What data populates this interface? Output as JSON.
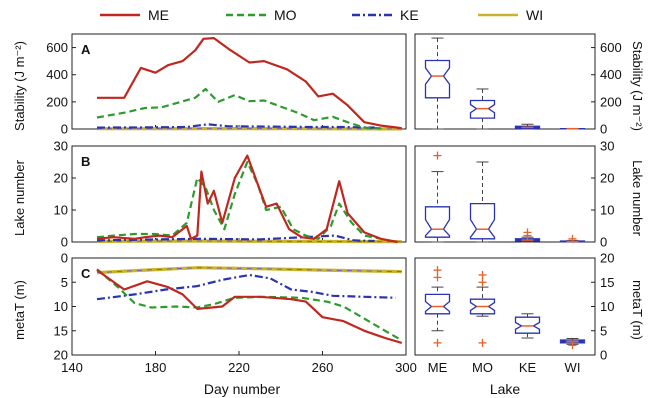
{
  "chart_data": [
    {
      "panel": "A",
      "type": "line",
      "x_label": "Day number",
      "y_label": "Stability (J m⁻²)",
      "xlim": [
        140,
        300
      ],
      "ylim": [
        0,
        700
      ],
      "x_ticks": [
        140,
        180,
        220,
        260,
        300
      ],
      "y_ticks": [
        0,
        200,
        400,
        600
      ],
      "series": [
        {
          "name": "ME",
          "color": "#c0281f",
          "dash": "solid",
          "points": [
            [
              152,
              230
            ],
            [
              165,
              230
            ],
            [
              173,
              450
            ],
            [
              180,
              415
            ],
            [
              186,
              470
            ],
            [
              193,
              500
            ],
            [
              199,
              580
            ],
            [
              203,
              665
            ],
            [
              208,
              670
            ],
            [
              215,
              590
            ],
            [
              225,
              490
            ],
            [
              232,
              500
            ],
            [
              243,
              440
            ],
            [
              252,
              350
            ],
            [
              258,
              240
            ],
            [
              265,
              260
            ],
            [
              272,
              175
            ],
            [
              280,
              50
            ],
            [
              288,
              25
            ],
            [
              296,
              10
            ],
            [
              298,
              5
            ]
          ]
        },
        {
          "name": "MO",
          "color": "#2e9b2e",
          "dash": "dashed",
          "points": [
            [
              152,
              85
            ],
            [
              165,
              120
            ],
            [
              175,
              155
            ],
            [
              183,
              160
            ],
            [
              192,
              200
            ],
            [
              199,
              230
            ],
            [
              204,
              295
            ],
            [
              210,
              200
            ],
            [
              218,
              250
            ],
            [
              225,
              205
            ],
            [
              232,
              210
            ],
            [
              240,
              165
            ],
            [
              248,
              120
            ],
            [
              256,
              65
            ],
            [
              265,
              90
            ],
            [
              272,
              50
            ],
            [
              280,
              10
            ],
            [
              288,
              5
            ]
          ]
        },
        {
          "name": "KE",
          "color": "#2a33b0",
          "dash": "dashdot",
          "points": [
            [
              152,
              10
            ],
            [
              175,
              12
            ],
            [
              195,
              15
            ],
            [
              205,
              35
            ],
            [
              215,
              20
            ],
            [
              235,
              18
            ],
            [
              255,
              15
            ],
            [
              270,
              15
            ],
            [
              285,
              10
            ]
          ]
        },
        {
          "name": "WI",
          "color": "#c9b32a",
          "dash": "solid",
          "points": [
            [
              152,
              2
            ],
            [
              200,
              3
            ],
            [
              250,
              2
            ],
            [
              298,
              1
            ]
          ]
        }
      ]
    },
    {
      "panel": "B",
      "type": "line",
      "y_label": "Lake number",
      "xlim": [
        140,
        300
      ],
      "ylim": [
        0,
        30
      ],
      "y_ticks": [
        0,
        10,
        20,
        30
      ],
      "series": [
        {
          "name": "ME",
          "points": [
            [
              152,
              1
            ],
            [
              160,
              1.5
            ],
            [
              170,
              1
            ],
            [
              175,
              1.5
            ],
            [
              182,
              2
            ],
            [
              188,
              1.5
            ],
            [
              195,
              5
            ],
            [
              197,
              1
            ],
            [
              200,
              2
            ],
            [
              202,
              22
            ],
            [
              205,
              12
            ],
            [
              208,
              16
            ],
            [
              212,
              6
            ],
            [
              218,
              20
            ],
            [
              224,
              27
            ],
            [
              229,
              18
            ],
            [
              233,
              11
            ],
            [
              238,
              12
            ],
            [
              244,
              4
            ],
            [
              250,
              1.5
            ],
            [
              256,
              1
            ],
            [
              262,
              4
            ],
            [
              268,
              19
            ],
            [
              272,
              9
            ],
            [
              280,
              3
            ],
            [
              288,
              1
            ],
            [
              296,
              0
            ]
          ]
        },
        {
          "name": "MO",
          "points": [
            [
              152,
              1.5
            ],
            [
              160,
              2
            ],
            [
              170,
              2.5
            ],
            [
              180,
              2.5
            ],
            [
              188,
              2
            ],
            [
              195,
              6
            ],
            [
              200,
              20
            ],
            [
              204,
              17
            ],
            [
              208,
              10
            ],
            [
              213,
              4
            ],
            [
              218,
              15
            ],
            [
              224,
              25
            ],
            [
              229,
              18
            ],
            [
              233,
              10
            ],
            [
              240,
              11
            ],
            [
              246,
              4
            ],
            [
              252,
              2
            ],
            [
              258,
              1
            ],
            [
              264,
              5
            ],
            [
              268,
              12
            ],
            [
              274,
              6
            ],
            [
              280,
              2
            ],
            [
              288,
              1
            ]
          ]
        },
        {
          "name": "KE",
          "points": [
            [
              152,
              0.5
            ],
            [
              200,
              1
            ],
            [
              230,
              0.8
            ],
            [
              266,
              2
            ],
            [
              275,
              0.5
            ],
            [
              285,
              0.3
            ]
          ]
        },
        {
          "name": "WI",
          "points": [
            [
              152,
              0.2
            ],
            [
              200,
              0.3
            ],
            [
              250,
              0.2
            ],
            [
              298,
              0.1
            ]
          ]
        }
      ]
    },
    {
      "panel": "C",
      "type": "line",
      "y_label": "metaT (m)",
      "xlim": [
        140,
        300
      ],
      "ylim": [
        20,
        0
      ],
      "y_ticks": [
        0,
        5,
        10,
        15,
        20
      ],
      "series": [
        {
          "name": "ME",
          "points": [
            [
              152,
              2.5
            ],
            [
              165,
              6.5
            ],
            [
              176,
              4.8
            ],
            [
              186,
              6
            ],
            [
              193,
              7.5
            ],
            [
              200,
              10.5
            ],
            [
              212,
              10
            ],
            [
              218,
              8
            ],
            [
              230,
              8
            ],
            [
              245,
              8.5
            ],
            [
              252,
              9
            ],
            [
              260,
              12.2
            ],
            [
              270,
              13
            ],
            [
              280,
              15
            ],
            [
              290,
              16.5
            ],
            [
              298,
              17.5
            ]
          ]
        },
        {
          "name": "MO",
          "points": [
            [
              152,
              2.3
            ],
            [
              162,
              6
            ],
            [
              170,
              9.3
            ],
            [
              178,
              10.2
            ],
            [
              190,
              10
            ],
            [
              200,
              10.2
            ],
            [
              208,
              9.5
            ],
            [
              218,
              8.2
            ],
            [
              232,
              8
            ],
            [
              250,
              8.2
            ],
            [
              262,
              9
            ],
            [
              270,
              10
            ],
            [
              280,
              12.5
            ],
            [
              290,
              15
            ],
            [
              298,
              17
            ]
          ]
        },
        {
          "name": "KE",
          "points": [
            [
              152,
              8.5
            ],
            [
              170,
              7.5
            ],
            [
              185,
              6.5
            ],
            [
              200,
              5.8
            ],
            [
              212,
              4.5
            ],
            [
              225,
              3.5
            ],
            [
              235,
              4.2
            ],
            [
              245,
              6.5
            ],
            [
              255,
              7
            ],
            [
              265,
              7.8
            ],
            [
              280,
              8
            ],
            [
              295,
              8.2
            ]
          ]
        },
        {
          "name": "WI",
          "points": [
            [
              152,
              3
            ],
            [
              175,
              2.5
            ],
            [
              200,
              2
            ],
            [
              230,
              2.2
            ],
            [
              260,
              2.5
            ],
            [
              298,
              2.8
            ]
          ]
        }
      ]
    },
    {
      "panel": "A-box",
      "type": "box",
      "y_label": "Stability (J m⁻²)",
      "ylim": [
        0,
        700
      ],
      "y_ticks": [
        0,
        200,
        400,
        600
      ],
      "categories": [
        "ME",
        "MO",
        "KE",
        "WI"
      ],
      "boxes": [
        {
          "q1": 230,
          "median": 390,
          "q3": 505,
          "notch_low": 330,
          "notch_high": 450,
          "whisker_low": 0,
          "whisker_high": 670,
          "outliers": []
        },
        {
          "q1": 80,
          "median": 150,
          "q3": 210,
          "notch_low": 120,
          "notch_high": 180,
          "whisker_low": 0,
          "whisker_high": 295,
          "outliers": []
        },
        {
          "q1": 5,
          "median": 12,
          "q3": 20,
          "notch_low": 8,
          "notch_high": 16,
          "whisker_low": 0,
          "whisker_high": 35,
          "outliers": []
        },
        {
          "q1": 1,
          "median": 2,
          "q3": 3,
          "notch_low": 1.5,
          "notch_high": 2.5,
          "whisker_low": 0,
          "whisker_high": 4,
          "outliers": []
        }
      ]
    },
    {
      "panel": "B-box",
      "type": "box",
      "y_label": "Lake number",
      "ylim": [
        0,
        30
      ],
      "y_ticks": [
        0,
        10,
        20,
        30
      ],
      "categories": [
        "ME",
        "MO",
        "KE",
        "WI"
      ],
      "boxes": [
        {
          "q1": 1.5,
          "median": 4,
          "q3": 11,
          "notch_low": 2,
          "notch_high": 7,
          "whisker_low": 0,
          "whisker_high": 22,
          "outliers": [
            27
          ]
        },
        {
          "q1": 1,
          "median": 4,
          "q3": 12,
          "notch_low": 1.5,
          "notch_high": 7,
          "whisker_low": 0,
          "whisker_high": 25,
          "outliers": []
        },
        {
          "q1": 0.3,
          "median": 0.6,
          "q3": 1,
          "notch_low": 0.4,
          "notch_high": 0.8,
          "whisker_low": 0,
          "whisker_high": 1.5,
          "outliers": [
            2,
            3
          ]
        },
        {
          "q1": 0.1,
          "median": 0.2,
          "q3": 0.3,
          "notch_low": 0.15,
          "notch_high": 0.25,
          "whisker_low": 0,
          "whisker_high": 0.5,
          "outliers": [
            1
          ]
        }
      ]
    },
    {
      "panel": "C-box",
      "type": "box",
      "y_label": "metaT (m)",
      "ylim": [
        0,
        20
      ],
      "y_ticks": [
        0,
        5,
        10,
        15,
        20
      ],
      "categories": [
        "ME",
        "MO",
        "KE",
        "WI"
      ],
      "boxes": [
        {
          "q1": 8.5,
          "median": 10,
          "q3": 12.5,
          "notch_low": 9,
          "notch_high": 11,
          "whisker_low": 5,
          "whisker_high": 14,
          "outliers": [
            2.5,
            16,
            17.5
          ]
        },
        {
          "q1": 8.5,
          "median": 10,
          "q3": 11.5,
          "notch_low": 9.2,
          "notch_high": 10.8,
          "whisker_low": 8,
          "whisker_high": 14,
          "outliers": [
            2.5,
            15,
            16.5
          ]
        },
        {
          "q1": 4.5,
          "median": 6,
          "q3": 7.8,
          "notch_low": 5.3,
          "notch_high": 6.7,
          "whisker_low": 3.5,
          "whisker_high": 8.5,
          "outliers": []
        },
        {
          "q1": 2.5,
          "median": 2.8,
          "q3": 3.1,
          "notch_low": 2.65,
          "notch_high": 2.95,
          "whisker_low": 2.2,
          "whisker_high": 3.4,
          "outliers": [
            2
          ]
        }
      ]
    }
  ],
  "legend": [
    {
      "name": "ME",
      "color": "#c0281f",
      "dash": "solid"
    },
    {
      "name": "MO",
      "color": "#2e9b2e",
      "dash": "dashed"
    },
    {
      "name": "KE",
      "color": "#2a33b0",
      "dash": "dashdot"
    },
    {
      "name": "WI",
      "color": "#c9b32a",
      "dash": "solid"
    }
  ],
  "labels": {
    "panel_a": "A",
    "panel_b": "B",
    "panel_c": "C",
    "x_axis": "Day number",
    "box_x_axis": "Lake",
    "left_y_a": "Stability (J m⁻²)",
    "left_y_b": "Lake number",
    "left_y_c": "metaT (m)",
    "right_y_a": "Stability (J m⁻²)",
    "right_y_b": "Lake number",
    "right_y_c": "metaT (m)"
  },
  "box_style": {
    "box_color": "#2a33b0",
    "median_color": "#e8602c",
    "outlier_color": "#e8602c",
    "whisker_color": "#444444"
  }
}
